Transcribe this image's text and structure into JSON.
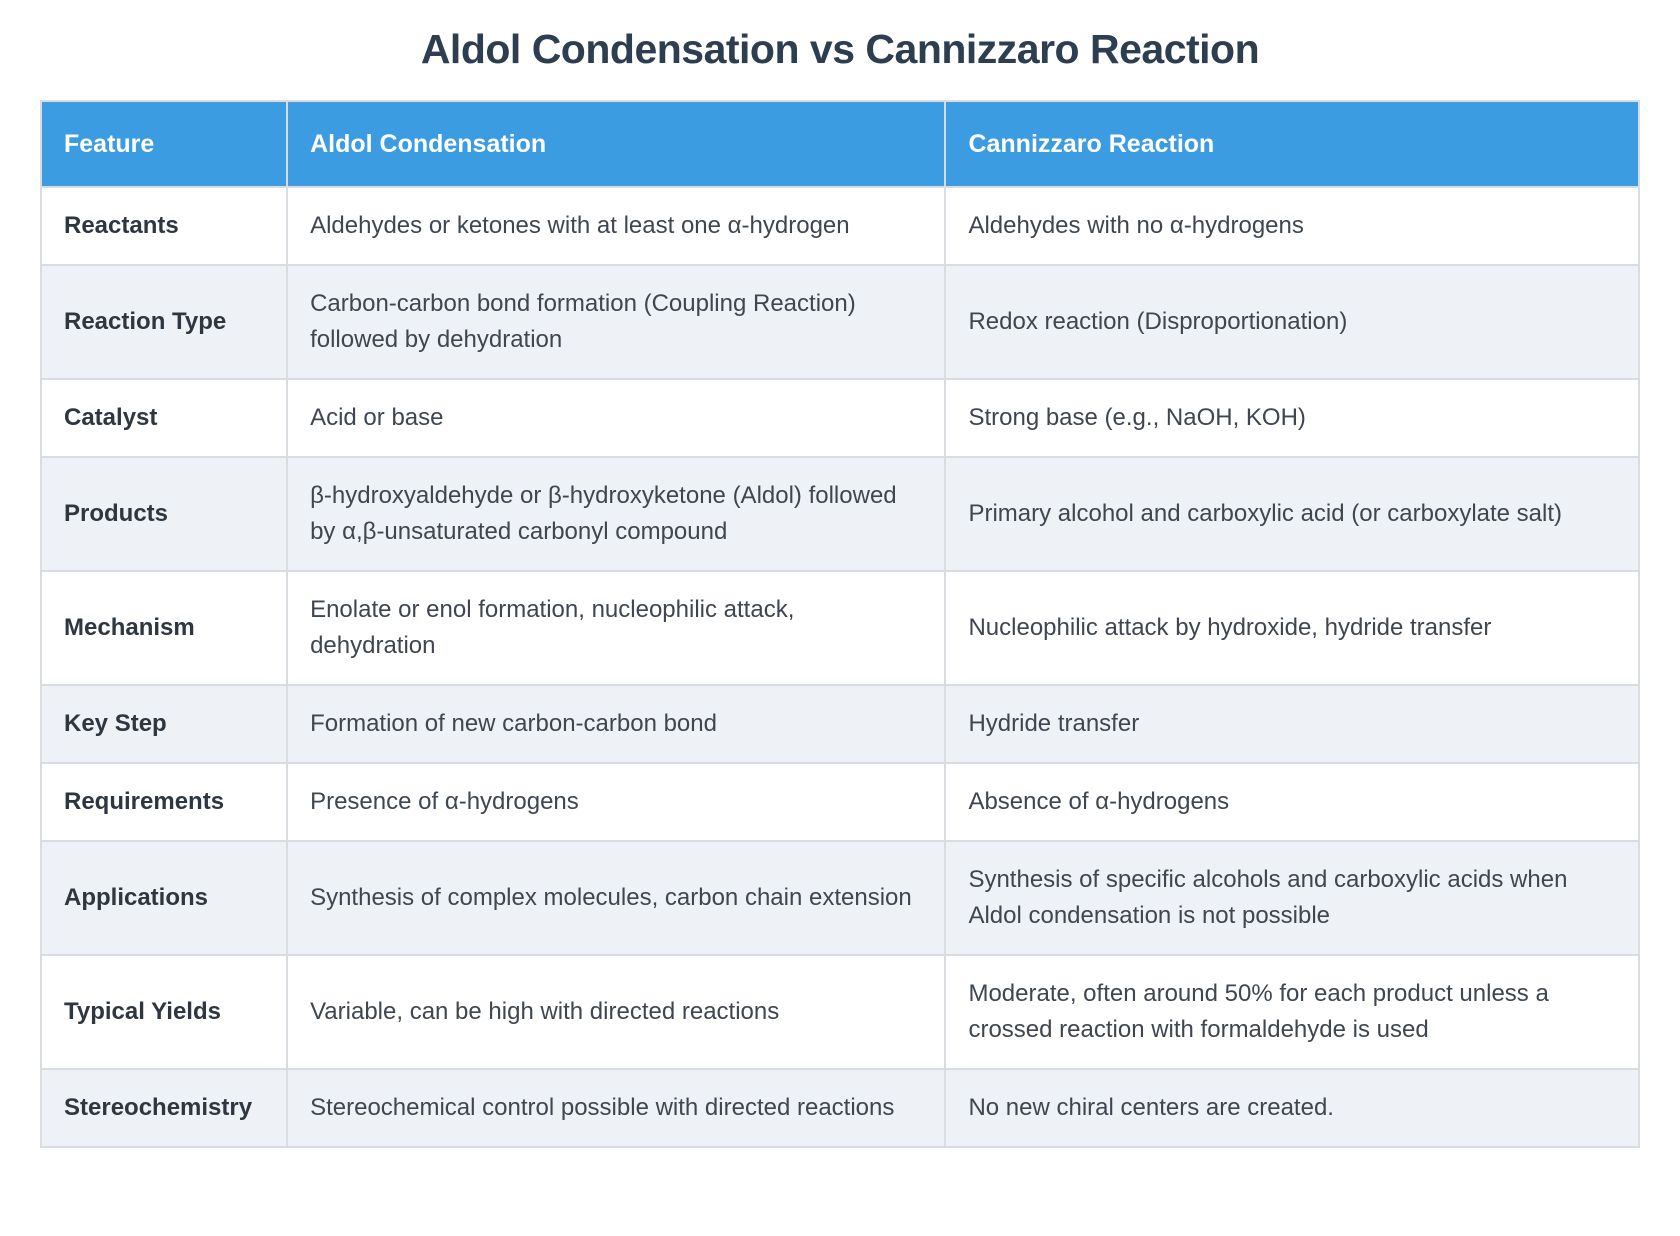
{
  "page": {
    "title": "Aldol Condensation vs Cannizzaro Reaction"
  },
  "table": {
    "columns": [
      "Feature",
      "Aldol Condensation",
      "Cannizzaro Reaction"
    ],
    "rows": [
      {
        "feature": "Reactants",
        "aldol": "Aldehydes or ketones with at least one α-hydrogen",
        "cannizzaro": "Aldehydes with no α-hydrogens"
      },
      {
        "feature": "Reaction Type",
        "aldol": "Carbon-carbon bond formation (Coupling Reaction) followed by dehydration",
        "cannizzaro": "Redox reaction (Disproportionation)"
      },
      {
        "feature": "Catalyst",
        "aldol": "Acid or base",
        "cannizzaro": "Strong base (e.g., NaOH, KOH)"
      },
      {
        "feature": "Products",
        "aldol": "β-hydroxyaldehyde or β-hydroxyketone (Aldol) followed by α,β-unsaturated carbonyl compound",
        "cannizzaro": "Primary alcohol and carboxylic acid (or carboxylate salt)"
      },
      {
        "feature": "Mechanism",
        "aldol": "Enolate or enol formation, nucleophilic attack, dehydration",
        "cannizzaro": "Nucleophilic attack by hydroxide, hydride transfer"
      },
      {
        "feature": "Key Step",
        "aldol": "Formation of new carbon-carbon bond",
        "cannizzaro": "Hydride transfer"
      },
      {
        "feature": "Requirements",
        "aldol": "Presence of α-hydrogens",
        "cannizzaro": "Absence of α-hydrogens"
      },
      {
        "feature": "Applications",
        "aldol": "Synthesis of complex molecules, carbon chain extension",
        "cannizzaro": "Synthesis of specific alcohols and carboxylic acids when Aldol condensation is not possible"
      },
      {
        "feature": "Typical Yields",
        "aldol": "Variable, can be high with directed reactions",
        "cannizzaro": "Moderate, often around 50% for each product unless a crossed reaction with formaldehyde is used"
      },
      {
        "feature": "Stereochemistry",
        "aldol": "Stereochemical control possible with directed reactions",
        "cannizzaro": "No new chiral centers are created."
      }
    ]
  },
  "colors": {
    "header_bg": "#3c9ce1",
    "header_text": "#ffffff",
    "stripe_bg": "#eef2f7",
    "row_bg": "#ffffff",
    "border": "#d9dde2",
    "title_text": "#2c3e50",
    "body_text": "#3f4650",
    "feature_text": "#2e3641",
    "page_bg": "#ffffff"
  }
}
